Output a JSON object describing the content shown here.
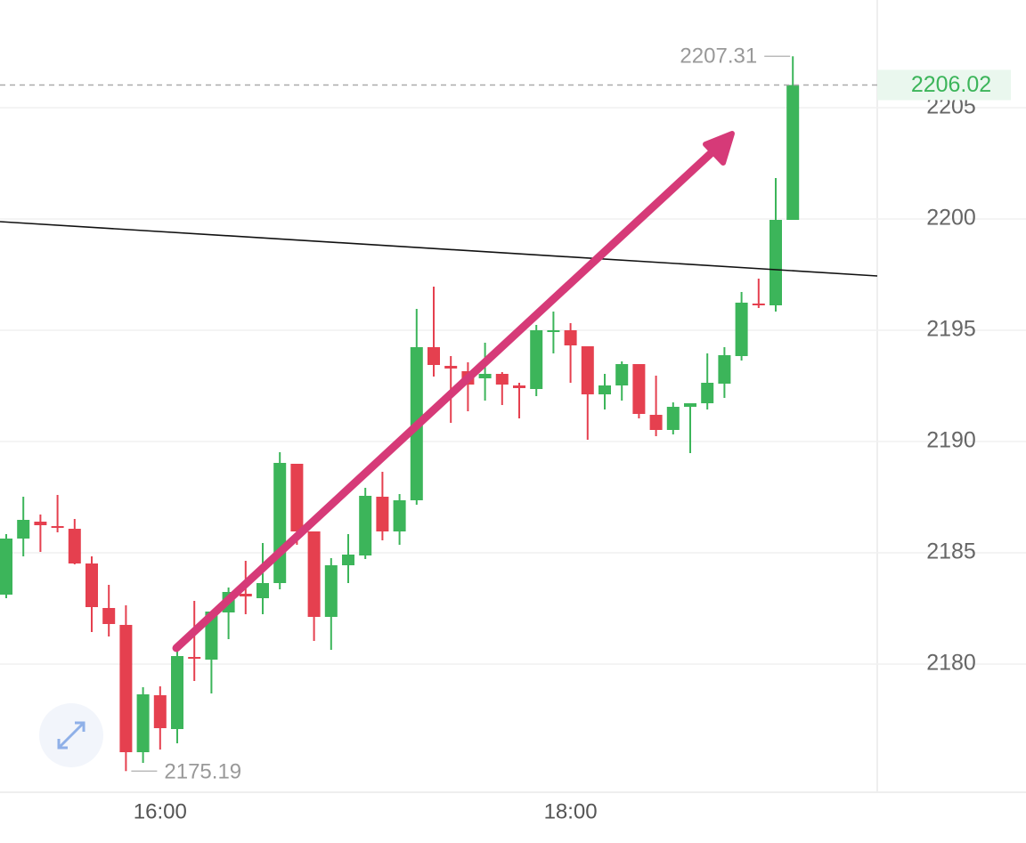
{
  "chart_data": {
    "type": "candlestick",
    "categories": [
      null,
      null,
      null,
      null,
      null,
      null,
      null,
      null,
      null,
      "16:00",
      null,
      null,
      null,
      null,
      null,
      null,
      null,
      null,
      null,
      null,
      null,
      null,
      null,
      null,
      null,
      null,
      null,
      null,
      null,
      null,
      null,
      null,
      null,
      "18:00",
      null,
      null,
      null,
      null,
      null,
      null,
      null,
      null,
      null,
      null,
      null,
      null,
      null
    ],
    "open": [
      2183.12,
      2185.64,
      2186.4,
      2186.2,
      2186.08,
      2184.52,
      2182.52,
      2181.76,
      2176.04,
      2178.6,
      2177.08,
      2180.32,
      2180.2,
      2182.32,
      2183.16,
      2182.96,
      2183.64,
      2189.0,
      2185.96,
      2182.12,
      2184.44,
      2184.88,
      2187.52,
      2185.96,
      2187.36,
      2194.24,
      2193.4,
      2193.16,
      2192.84,
      2193.04,
      2192.52,
      2192.36,
      2194.96,
      2195.0,
      2194.28,
      2192.12,
      2192.52,
      2193.48,
      2191.2,
      2190.52,
      2191.56,
      2191.72,
      2192.6,
      2193.84,
      2196.2,
      2196.12,
      2199.96
    ],
    "high": [
      2185.84,
      2187.52,
      2186.72,
      2187.6,
      2186.52,
      2184.84,
      2183.56,
      2182.64,
      2178.96,
      2179.0,
      2180.64,
      2182.84,
      2182.36,
      2183.44,
      2184.64,
      2185.44,
      2189.52,
      2189.0,
      2185.96,
      2184.76,
      2185.84,
      2187.92,
      2188.64,
      2187.64,
      2195.96,
      2196.96,
      2193.84,
      2193.56,
      2194.44,
      2193.12,
      2192.64,
      2195.24,
      2195.84,
      2195.32,
      2194.28,
      2193.04,
      2193.6,
      2193.48,
      2192.96,
      2191.76,
      2191.72,
      2193.96,
      2194.24,
      2196.72,
      2197.32,
      2201.84,
      2207.31
    ],
    "low": [
      2182.96,
      2184.84,
      2185.04,
      2185.92,
      2184.48,
      2181.44,
      2181.24,
      2175.19,
      2175.56,
      2176.16,
      2176.44,
      2179.24,
      2178.68,
      2181.12,
      2182.24,
      2182.24,
      2183.36,
      2185.36,
      2181.04,
      2180.64,
      2183.64,
      2184.72,
      2185.56,
      2185.36,
      2187.16,
      2192.92,
      2190.84,
      2191.36,
      2191.84,
      2191.64,
      2191.04,
      2192.04,
      2193.96,
      2192.64,
      2190.08,
      2191.44,
      2191.84,
      2191.04,
      2190.24,
      2190.32,
      2189.48,
      2191.44,
      2191.96,
      2193.64,
      2196.0,
      2195.84,
      2199.96
    ],
    "close": [
      2185.64,
      2186.48,
      2186.24,
      2186.12,
      2184.52,
      2182.56,
      2181.8,
      2176.04,
      2178.64,
      2177.12,
      2180.36,
      2180.24,
      2182.36,
      2183.24,
      2183.04,
      2183.64,
      2189.04,
      2185.96,
      2182.12,
      2184.44,
      2184.92,
      2187.56,
      2185.96,
      2187.36,
      2194.24,
      2193.44,
      2193.28,
      2192.56,
      2193.04,
      2192.56,
      2192.4,
      2195.0,
      2195.0,
      2194.32,
      2192.12,
      2192.52,
      2193.48,
      2191.24,
      2190.52,
      2191.56,
      2191.72,
      2192.64,
      2193.88,
      2196.24,
      2196.12,
      2199.96,
      2206.02
    ],
    "up_color": "#3cb55a",
    "down_color": "#e5404f",
    "ylim": [
      2174.24,
      2209.84
    ],
    "yticks": [
      2180,
      2185,
      2190,
      2195,
      2200,
      2205
    ],
    "grid": true
  }
}
